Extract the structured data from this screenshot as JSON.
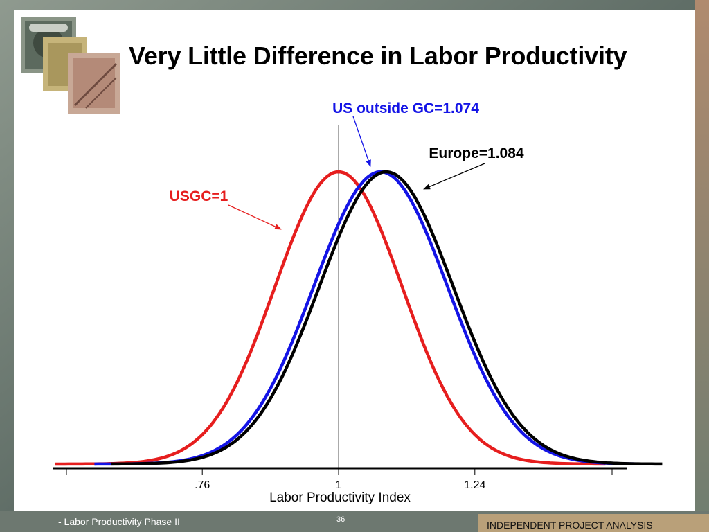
{
  "slide": {
    "title": "Very Little Difference in Labor Productivity",
    "footer_left": "- Labor Productivity Phase II",
    "page_number": "36",
    "footer_right": "INDEPENDENT PROJECT ANALYSIS"
  },
  "chart_data": {
    "type": "line",
    "title": "Very Little Difference in Labor Productivity",
    "xlabel": "Labor Productivity Index",
    "ylabel": "",
    "xlim": [
      0.5,
      1.54
    ],
    "xticks": [
      0.76,
      1,
      1.24
    ],
    "xtick_labels": [
      ".76",
      "1",
      "1.24"
    ],
    "reference_line_x": 1,
    "grid": false,
    "series": [
      {
        "name": "USGC=1",
        "mean": 1.0,
        "sd": 0.112,
        "x_range": [
          0.5,
          1.47
        ],
        "color": "#e61e1e"
      },
      {
        "name": "US outside GC=1.074",
        "mean": 1.074,
        "sd": 0.118,
        "x_range": [
          0.57,
          1.53
        ],
        "color": "#1414e6"
      },
      {
        "name": "Europe=1.084",
        "mean": 1.084,
        "sd": 0.118,
        "x_range": [
          0.6,
          1.57
        ],
        "color": "#000000"
      }
    ],
    "annotations": [
      {
        "text": "US outside GC=1.074",
        "color": "#1414e6"
      },
      {
        "text": "Europe=1.084",
        "color": "#000000"
      },
      {
        "text": "USGC=1",
        "color": "#e61e1e"
      }
    ]
  }
}
